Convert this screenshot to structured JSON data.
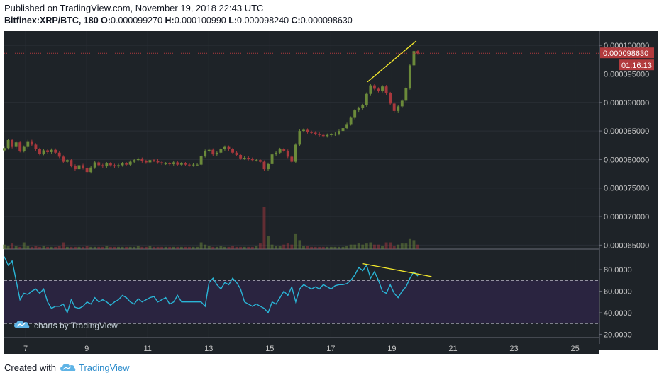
{
  "header": {
    "published": "Published on TradingView.com, November 19, 2018 22:43 UTC",
    "symbol": "Bitfinex:XRP/BTC, 180",
    "open_label": "O:",
    "open": "0.000099270",
    "high_label": "H:",
    "high": "0.000100990",
    "low_label": "L:",
    "low": "0.000098240",
    "close_label": "C:",
    "close": "0.000098630"
  },
  "watermark": "charts by TradingView",
  "footer": {
    "created_with": "Created with",
    "brand": "TradingView"
  },
  "colors": {
    "background": "#1e2328",
    "grid": "#2a2f36",
    "up": "#6b8a3a",
    "down": "#a8383d",
    "rsi_line": "#2ab5d6",
    "rsi_band": "#2a2440",
    "trendline": "#f5ea2c",
    "price_tag": "#b23a3d",
    "axis_text": "#c8c8c8"
  },
  "chart_data": {
    "type": "candlestick",
    "symbol": "XRP/BTC",
    "exchange": "Bitfinex",
    "interval": "180",
    "price_axis": {
      "ticks": [
        "0.000100000",
        "0.000095000",
        "0.000090000",
        "0.000085000",
        "0.000080000",
        "0.000075000",
        "0.000070000",
        "0.000065000"
      ],
      "ylim": [
        6.43e-05,
        0.0001025
      ]
    },
    "last_price_label": "0.000098630",
    "countdown_label": "01:16:13",
    "x_axis": {
      "ticks": [
        "7",
        "9",
        "11",
        "13",
        "15",
        "17",
        "19",
        "21",
        "23",
        "25"
      ],
      "xlim": [
        6.3,
        25.8
      ]
    },
    "candles_close": [
      8.2e-05,
      8.34e-05,
      8.22e-05,
      8.3e-05,
      8.15e-05,
      8.22e-05,
      8.32e-05,
      8.26e-05,
      8.18e-05,
      8.1e-05,
      8.16e-05,
      8.13e-05,
      8.17e-05,
      8.12e-05,
      8.05e-05,
      7.96e-05,
      7.99e-05,
      7.89e-05,
      7.83e-05,
      7.9e-05,
      7.85e-05,
      7.78e-05,
      7.86e-05,
      7.95e-05,
      7.9e-05,
      7.88e-05,
      7.93e-05,
      7.9e-05,
      7.88e-05,
      7.9e-05,
      7.93e-05,
      7.91e-05,
      7.96e-05,
      7.99e-05,
      8.01e-05,
      7.97e-05,
      7.95e-05,
      7.99e-05,
      7.98e-05,
      7.95e-05,
      7.93e-05,
      7.93e-05,
      7.92e-05,
      7.95e-05,
      7.91e-05,
      7.93e-05,
      7.91e-05,
      7.9e-05,
      7.91e-05,
      7.91e-05,
      8.06e-05,
      8.15e-05,
      8.17e-05,
      8.09e-05,
      8.12e-05,
      8.18e-05,
      8.22e-05,
      8.18e-05,
      8.12e-05,
      8.08e-05,
      8.02e-05,
      8.03e-05,
      8.01e-05,
      7.99e-05,
      7.99e-05,
      7.96e-05,
      7.83e-05,
      7.92e-05,
      8.09e-05,
      8.12e-05,
      8.18e-05,
      8.15e-05,
      8.05e-05,
      7.96e-05,
      8.26e-05,
      8.5e-05,
      8.52e-05,
      8.48e-05,
      8.47e-05,
      8.45e-05,
      8.43e-05,
      8.41e-05,
      8.43e-05,
      8.44e-05,
      8.45e-05,
      8.5e-05,
      8.55e-05,
      8.62e-05,
      8.73e-05,
      8.86e-05,
      8.9e-05,
      8.95e-05,
      9.15e-05,
      9.3e-05,
      9.24e-05,
      9.2e-05,
      9.28e-05,
      9.16e-05,
      8.98e-05,
      8.85e-05,
      8.93e-05,
      9.03e-05,
      9.25e-05,
      9.65e-05,
      9.9e-05,
      9.86e-05
    ],
    "volume": [
      4,
      3,
      5,
      3,
      2,
      6,
      3,
      2,
      3,
      2,
      3,
      2,
      2,
      2,
      3,
      6,
      2,
      2,
      2,
      2,
      2,
      3,
      2,
      2,
      2,
      2,
      3,
      2,
      2,
      2,
      2,
      2,
      2,
      2,
      3,
      2,
      2,
      3,
      2,
      2,
      2,
      2,
      2,
      2,
      2,
      2,
      2,
      2,
      2,
      2,
      6,
      4,
      3,
      2,
      2,
      3,
      2,
      2,
      3,
      2,
      2,
      2,
      2,
      2,
      3,
      5,
      38,
      12,
      4,
      3,
      3,
      4,
      5,
      4,
      14,
      8,
      3,
      3,
      2,
      2,
      2,
      2,
      2,
      2,
      2,
      2,
      2,
      3,
      4,
      4,
      5,
      4,
      5,
      6,
      4,
      4,
      3,
      6,
      6,
      3,
      4,
      5,
      5,
      9,
      8,
      4
    ],
    "rsi": {
      "ticks": [
        "80.0000",
        "60.0000",
        "40.0000",
        "20.0000"
      ],
      "ylim": [
        17,
        99
      ],
      "upper_band": 70,
      "lower_band": 30,
      "values": [
        92,
        84,
        88,
        70,
        52,
        58,
        57,
        60,
        62,
        58,
        62,
        50,
        44,
        46,
        46,
        48,
        40,
        52,
        45,
        44,
        46,
        50,
        48,
        54,
        50,
        52,
        50,
        47,
        50,
        52,
        56,
        54,
        50,
        48,
        53,
        50,
        52,
        54,
        55,
        50,
        52,
        54,
        48,
        50,
        56,
        50,
        50,
        50,
        50,
        50,
        50,
        46,
        68,
        72,
        66,
        62,
        68,
        66,
        72,
        68,
        62,
        50,
        48,
        46,
        48,
        46,
        44,
        40,
        50,
        48,
        54,
        60,
        56,
        64,
        50,
        62,
        66,
        64,
        62,
        64,
        62,
        66,
        64,
        62,
        65,
        66,
        66,
        67,
        70,
        75,
        82,
        79,
        84,
        72,
        78,
        70,
        60,
        58,
        66,
        58,
        54,
        60,
        64,
        72,
        78,
        74
      ]
    },
    "trendlines": [
      {
        "pane": "price",
        "from": [
          18.2,
          9.36e-05
        ],
        "to": [
          19.8,
          0.0001008
        ]
      },
      {
        "pane": "rsi",
        "from": [
          18.05,
          85.5
        ],
        "to": [
          20.3,
          73.5
        ]
      }
    ]
  }
}
